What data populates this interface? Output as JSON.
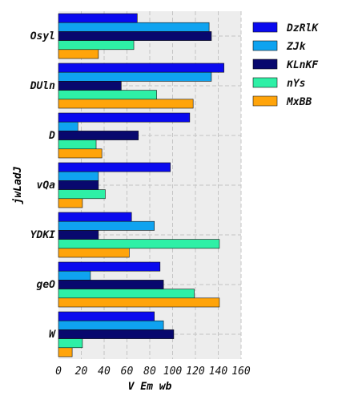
{
  "chart_data": {
    "type": "bar",
    "orientation": "horizontal",
    "title": "",
    "xlabel": "V Em wb",
    "ylabel": "jwLadJ",
    "categories": [
      "Osyl",
      "DUln",
      "D",
      "vQa",
      "YDKI",
      "geO",
      "W"
    ],
    "xlim": [
      0,
      160
    ],
    "xticks": [
      0,
      20,
      40,
      60,
      80,
      100,
      120,
      140,
      160
    ],
    "grid": true,
    "legend_position": "top-right",
    "series": [
      {
        "name": "DzRlK",
        "color": "#0a0aee",
        "values": [
          69,
          145,
          115,
          98,
          64,
          89,
          84
        ]
      },
      {
        "name": "ZJk",
        "color": "#0fa3f0",
        "values": [
          132,
          134,
          17,
          35,
          84,
          28,
          92
        ]
      },
      {
        "name": "KLnKF",
        "color": "#08086e",
        "values": [
          134,
          55,
          70,
          35,
          35,
          92,
          101
        ]
      },
      {
        "name": "nYs",
        "color": "#2ef0a6",
        "values": [
          66,
          86,
          33,
          41,
          141,
          119,
          21
        ]
      },
      {
        "name": "MxBB",
        "color": "#ffa40a",
        "values": [
          35,
          118,
          38,
          21,
          62,
          141,
          12
        ]
      }
    ]
  }
}
